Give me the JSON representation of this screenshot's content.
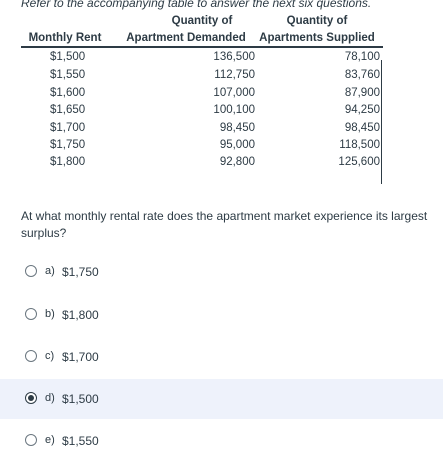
{
  "intro": "Refer to the accompanying table to answer the next six questions.",
  "table": {
    "headers": {
      "col1": "Monthly Rent",
      "col2_top": "Quantity of",
      "col2_bottom": "Apartment Demanded",
      "col3_top": "Quantity of",
      "col3_bottom": "Apartments Supplied"
    },
    "rows": [
      {
        "rent": "$1,500",
        "demanded": "136,500",
        "supplied": "78,100"
      },
      {
        "rent": "$1,550",
        "demanded": "112,750",
        "supplied": "83,760"
      },
      {
        "rent": "$1,600",
        "demanded": "107,000",
        "supplied": "87,900"
      },
      {
        "rent": "$1,650",
        "demanded": "100,100",
        "supplied": "94,250"
      },
      {
        "rent": "$1,700",
        "demanded": "98,450",
        "supplied": "98,450"
      },
      {
        "rent": "$1,750",
        "demanded": "95,000",
        "supplied": "118,500"
      },
      {
        "rent": "$1,800",
        "demanded": "92,800",
        "supplied": "125,600"
      }
    ]
  },
  "question": "At what monthly rental rate does the apartment market experience its largest surplus?",
  "options": [
    {
      "letter": "a)",
      "value": "$1,750",
      "selected": false
    },
    {
      "letter": "b)",
      "value": "$1,800",
      "selected": false
    },
    {
      "letter": "c)",
      "value": "$1,700",
      "selected": false
    },
    {
      "letter": "d)",
      "value": "$1,500",
      "selected": true
    },
    {
      "letter": "e)",
      "value": "$1,550",
      "selected": false
    }
  ],
  "colors": {
    "text": "#2d3b45",
    "selected_background": "#eef2fb"
  }
}
